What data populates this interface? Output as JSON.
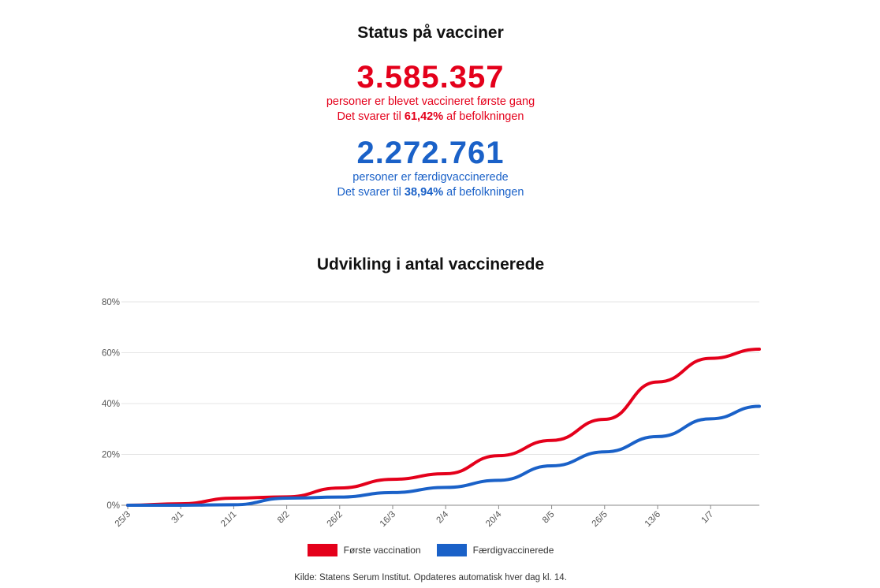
{
  "status": {
    "title": "Status på vacciner",
    "first": {
      "number": "3.585.357",
      "line1": "personer er blevet vaccineret første gang",
      "line2_prefix": "Det svarer til ",
      "line2_value": "61,42%",
      "line2_suffix": " af befolkningen",
      "color": "#e4001b"
    },
    "completed": {
      "number": "2.272.761",
      "line1": "personer er færdigvaccinerede",
      "line2_prefix": "Det svarer til ",
      "line2_value": "38,94%",
      "line2_suffix": " af befolkningen",
      "color": "#1a61c8"
    }
  },
  "chart_title": "Udvikling i antal vaccinerede",
  "source": "Kilde: Statens Serum Institut. Opdateres automatisk hver dag kl. 14.",
  "chart_data": {
    "type": "line",
    "title": "Udvikling i antal vaccinerede",
    "xlabel": "",
    "ylabel": "",
    "ylim": [
      0,
      80
    ],
    "y_ticks": [
      "0%",
      "20%",
      "40%",
      "60%",
      "80%"
    ],
    "y_tick_values": [
      0,
      20,
      40,
      60,
      80
    ],
    "x_tick_labels": [
      "25/3",
      "3/1",
      "21/1",
      "8/2",
      "26/2",
      "16/3",
      "2/4",
      "20/4",
      "8/5",
      "26/5",
      "13/6",
      "1/7"
    ],
    "grid": true,
    "legend_position": "bottom",
    "series": [
      {
        "name": "Første vaccination",
        "color": "#e4001b",
        "points": [
          [
            "25/3",
            0
          ],
          [
            "3/1",
            0.6
          ],
          [
            "21/1",
            2.8
          ],
          [
            "8/2",
            3.3
          ],
          [
            "26/2",
            6.8
          ],
          [
            "16/3",
            10.2
          ],
          [
            "2/4",
            12.4
          ],
          [
            "20/4",
            19.5
          ],
          [
            "8/5",
            25.5
          ],
          [
            "26/5",
            33.8
          ],
          [
            "13/6",
            48.5
          ],
          [
            "1/7",
            57.8
          ],
          [
            "",
            61.4
          ]
        ]
      },
      {
        "name": "Færdigvaccinerede",
        "color": "#1a61c8",
        "points": [
          [
            "25/3",
            0
          ],
          [
            "3/1",
            0
          ],
          [
            "21/1",
            0.2
          ],
          [
            "8/2",
            2.8
          ],
          [
            "26/2",
            3.2
          ],
          [
            "16/3",
            5.0
          ],
          [
            "2/4",
            7.0
          ],
          [
            "20/4",
            9.8
          ],
          [
            "8/5",
            15.5
          ],
          [
            "26/5",
            21.0
          ],
          [
            "13/6",
            27.0
          ],
          [
            "1/7",
            34.0
          ],
          [
            "",
            38.9
          ]
        ]
      }
    ]
  }
}
